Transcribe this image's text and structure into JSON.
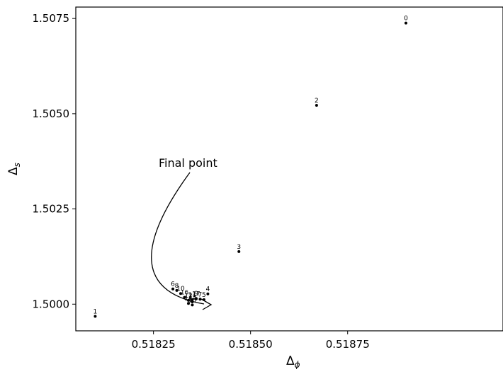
{
  "chart_data": {
    "type": "scatter",
    "xlabel_main": "Δ",
    "xlabel_sub": "ϕ",
    "ylabel_main": "Δ",
    "ylabel_sub": "s",
    "xlim": [
      0.51805,
      0.51915
    ],
    "ylim": [
      1.4993,
      1.5078
    ],
    "xticks": [
      0.51825,
      0.5185,
      0.51875
    ],
    "xtick_labels": [
      "0.51825",
      "0.51850",
      "0.51875"
    ],
    "yticks": [
      1.5,
      1.5025,
      1.505,
      1.5075
    ],
    "ytick_labels": [
      "1.5000",
      "1.5025",
      "1.5050",
      "1.5075"
    ],
    "grid": false,
    "points": [
      {
        "label": "0",
        "x": 0.5189,
        "y": 1.50738
      },
      {
        "label": "1",
        "x": 0.5181,
        "y": 1.49968
      },
      {
        "label": "2",
        "x": 0.51867,
        "y": 1.50522
      },
      {
        "label": "3",
        "x": 0.51847,
        "y": 1.50138
      },
      {
        "label": "4",
        "x": 0.51839,
        "y": 1.50027
      },
      {
        "label": "5",
        "x": 0.51838,
        "y": 1.50012
      },
      {
        "label": "6",
        "x": 0.5183,
        "y": 1.5004
      },
      {
        "label": "7",
        "x": 0.51837,
        "y": 1.50013
      },
      {
        "label": "8",
        "x": 0.51831,
        "y": 1.50036
      },
      {
        "label": "9",
        "x": 0.51836,
        "y": 1.50015
      },
      {
        "label": "10",
        "x": 0.51832,
        "y": 1.50028
      },
      {
        "label": "11",
        "x": 0.51835,
        "y": 1.50012
      },
      {
        "label": "12",
        "x": 0.51834,
        "y": 1.5001
      },
      {
        "label": "13",
        "x": 0.51835,
        "y": 1.50006
      },
      {
        "label": "14",
        "x": 0.51834,
        "y": 1.50002
      },
      {
        "label": "15",
        "x": 0.51835,
        "y": 1.49998
      },
      {
        "label": "16",
        "x": 0.51833,
        "y": 1.50018
      },
      {
        "label": "17",
        "x": 0.51836,
        "y": 1.50014
      }
    ],
    "annotation": {
      "text": "Final point",
      "x": 0.51834,
      "y": 1.4999,
      "text_x": 0.51829,
      "text_y": 1.5034
    }
  }
}
